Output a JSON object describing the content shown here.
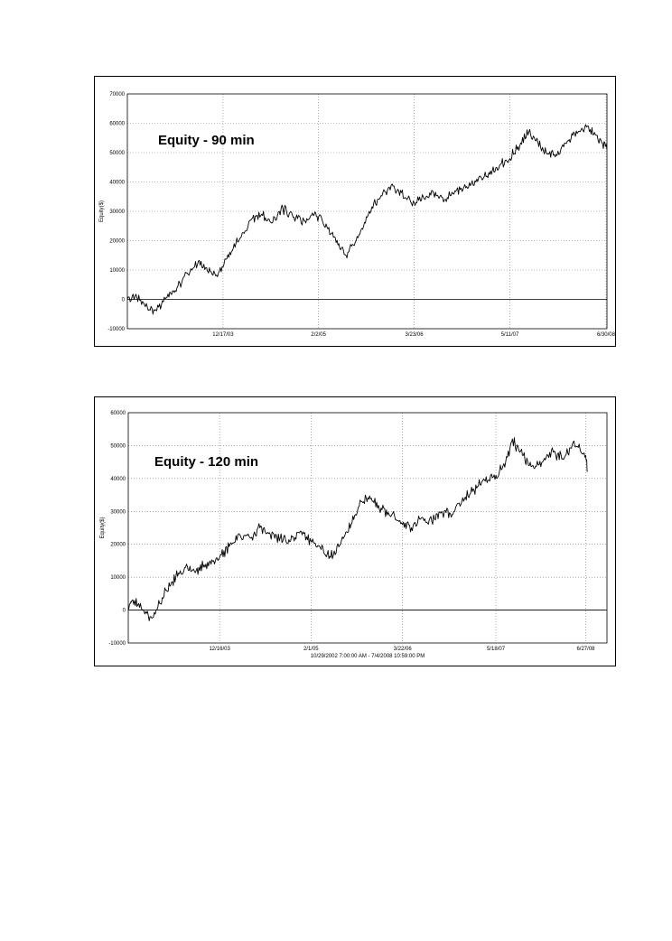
{
  "chart_data": [
    {
      "type": "line",
      "title": "Equity - 90 min",
      "ylabel": "Equity($)",
      "xlabel": "",
      "ylim": [
        -10000,
        70000
      ],
      "yticks": [
        70000,
        60000,
        50000,
        40000,
        30000,
        20000,
        10000,
        0,
        -10000
      ],
      "xlim": [
        "2002-10-29",
        "2008-07-04"
      ],
      "xticks": [
        {
          "label": "12/17/03",
          "date": "2003-12-17"
        },
        {
          "label": "2/2/05",
          "date": "2005-02-02"
        },
        {
          "label": "3/23/06",
          "date": "2006-03-23"
        },
        {
          "label": "5/11/07",
          "date": "2007-05-11"
        },
        {
          "label": "6/30/08",
          "date": "2008-06-30"
        }
      ],
      "grid": true,
      "color": "#000000",
      "series": [
        {
          "x": [
            "2002-10-29",
            "2002-12-01",
            "2003-01-15",
            "2003-03-01",
            "2003-04-15",
            "2003-06-01",
            "2003-07-15",
            "2003-09-01",
            "2003-10-15",
            "2003-11-15",
            "2003-12-17",
            "2004-01-15",
            "2004-03-01",
            "2004-04-15",
            "2004-06-01",
            "2004-07-15",
            "2004-09-01",
            "2004-10-15",
            "2004-12-01",
            "2005-01-15",
            "2005-02-02",
            "2005-03-15",
            "2005-05-01",
            "2005-06-01",
            "2005-07-15",
            "2005-09-01",
            "2005-10-15",
            "2005-12-01",
            "2006-01-15",
            "2006-03-23",
            "2006-05-01",
            "2006-06-15",
            "2006-08-01",
            "2006-09-15",
            "2006-11-01",
            "2006-12-15",
            "2007-02-01",
            "2007-03-15",
            "2007-05-11",
            "2007-06-15",
            "2007-08-01",
            "2007-09-01",
            "2007-10-15",
            "2007-12-01",
            "2008-01-15",
            "2008-03-01",
            "2008-04-15",
            "2008-05-15",
            "2008-06-15",
            "2008-07-04"
          ],
          "y": [
            0,
            1000,
            -2500,
            -3500,
            500,
            4000,
            9000,
            13000,
            9000,
            8000,
            11000,
            16000,
            21000,
            27000,
            29000,
            26000,
            31000,
            28000,
            27000,
            29000,
            28000,
            24000,
            19000,
            15000,
            20000,
            28000,
            34000,
            38000,
            37000,
            33000,
            35000,
            36000,
            34000,
            37000,
            38000,
            40000,
            42000,
            45000,
            48000,
            52000,
            57000,
            54000,
            50000,
            49000,
            54000,
            57000,
            59000,
            56000,
            53000,
            51000
          ]
        }
      ]
    },
    {
      "type": "line",
      "title": "Equity - 120 min",
      "ylabel": "Equity($)",
      "xlabel": "10/29/2002 7:00:00 AM - 7/4/2008 10:59:00 PM",
      "ylim": [
        -10000,
        60000
      ],
      "yticks": [
        60000,
        50000,
        40000,
        30000,
        20000,
        10000,
        0,
        -10000
      ],
      "xlim": [
        "2002-10-29",
        "2008-10-01"
      ],
      "xticks": [
        {
          "label": "12/16/03",
          "date": "2003-12-16"
        },
        {
          "label": "2/1/05",
          "date": "2005-02-01"
        },
        {
          "label": "3/22/06",
          "date": "2006-03-22"
        },
        {
          "label": "5/18/07",
          "date": "2007-05-18"
        },
        {
          "label": "6/27/08",
          "date": "2008-06-27"
        }
      ],
      "grid": true,
      "color": "#000000",
      "series": [
        {
          "x": [
            "2002-10-29",
            "2002-11-15",
            "2002-12-15",
            "2003-01-20",
            "2003-02-20",
            "2003-03-20",
            "2003-04-20",
            "2003-06-01",
            "2003-07-15",
            "2003-09-01",
            "2003-10-15",
            "2003-12-16",
            "2004-02-01",
            "2004-03-15",
            "2004-05-01",
            "2004-06-15",
            "2004-08-01",
            "2004-09-15",
            "2004-11-01",
            "2004-12-15",
            "2005-02-01",
            "2005-03-15",
            "2005-05-01",
            "2005-06-15",
            "2005-08-01",
            "2005-09-15",
            "2005-11-01",
            "2005-12-15",
            "2006-02-01",
            "2006-03-22",
            "2006-05-01",
            "2006-06-15",
            "2006-08-01",
            "2006-09-15",
            "2006-11-01",
            "2006-12-15",
            "2007-02-01",
            "2007-03-15",
            "2007-05-18",
            "2007-07-01",
            "2007-08-01",
            "2007-09-15",
            "2007-11-01",
            "2007-12-15",
            "2008-02-01",
            "2008-03-15",
            "2008-05-01",
            "2008-06-01",
            "2008-06-27",
            "2008-07-04"
          ],
          "y": [
            0,
            3000,
            2000,
            -1000,
            -2000,
            2000,
            6000,
            10000,
            13000,
            12000,
            14000,
            16000,
            20000,
            23000,
            22000,
            25000,
            23000,
            22000,
            21000,
            24000,
            21000,
            19000,
            16000,
            20000,
            26000,
            33000,
            34000,
            31000,
            29000,
            26000,
            25000,
            28000,
            27000,
            30000,
            29000,
            33000,
            36000,
            39000,
            41000,
            45000,
            52000,
            47000,
            44000,
            45000,
            48000,
            46000,
            51000,
            49000,
            47000,
            42000
          ]
        }
      ]
    }
  ]
}
